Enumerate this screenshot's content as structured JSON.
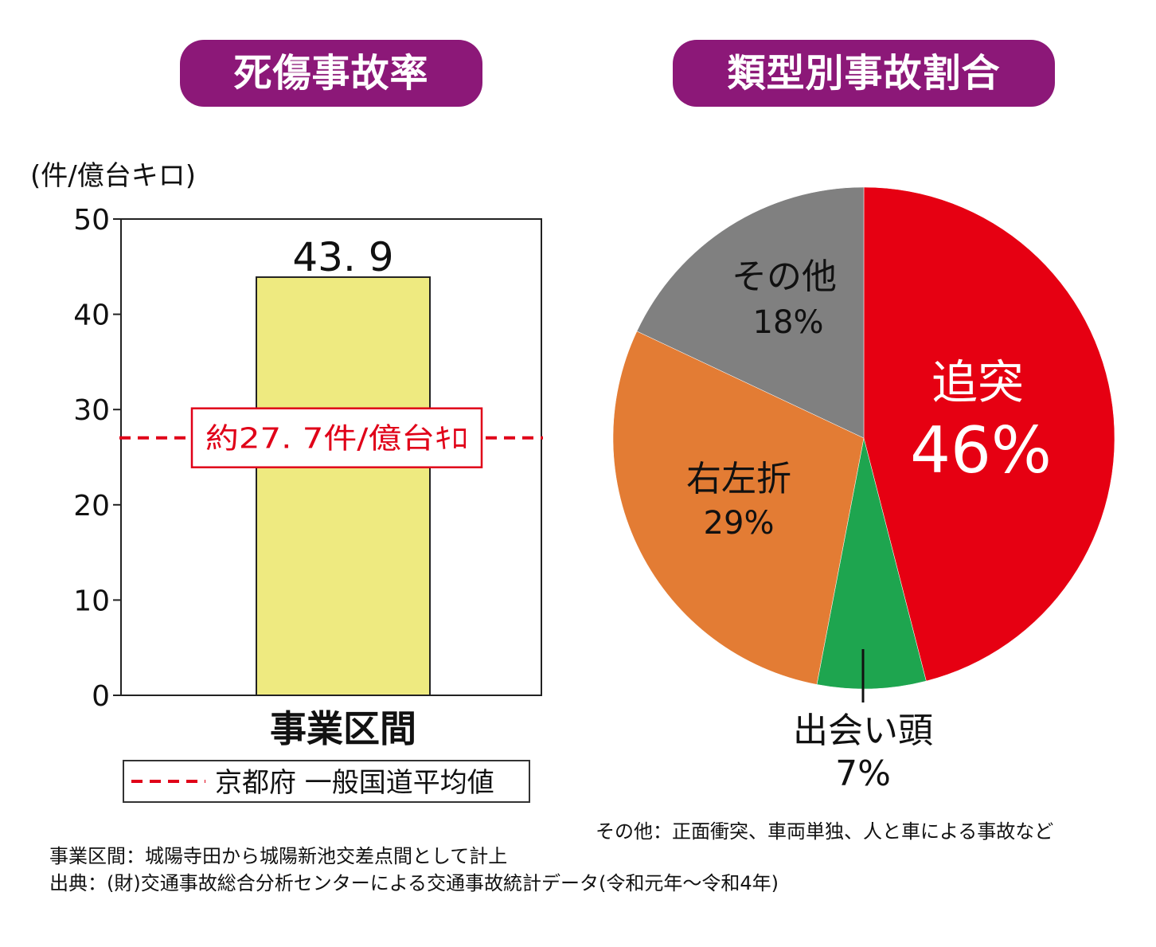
{
  "titles": {
    "left": "死傷事故率",
    "right": "類型別事故割合"
  },
  "colors": {
    "title_bg": "#8c1878",
    "bar_fill": "#eeea80",
    "reference_line": "#e00018",
    "rear_end": "#e60012",
    "head_on": "#1ea54f",
    "turning": "#e37c34",
    "other": "#808080"
  },
  "chart_data": [
    {
      "type": "bar",
      "title": "死傷事故率",
      "ylabel": "(件/億台キロ)",
      "categories": [
        "事業区間"
      ],
      "values": [
        43.9
      ],
      "value_labels": [
        "43. 9"
      ],
      "ylim": [
        0,
        50
      ],
      "yticks": [
        0,
        10,
        20,
        30,
        40,
        50
      ],
      "ytick_labels": [
        "0",
        "10",
        "20",
        "30",
        "40",
        "50"
      ],
      "reference_line": {
        "value": 27.7,
        "label": "約27. 7件/億台ｷﾛ",
        "style": "dashed",
        "legend": "京都府 一般国道平均値"
      }
    },
    {
      "type": "pie",
      "title": "類型別事故割合",
      "slices": [
        {
          "name": "追突",
          "value": 46,
          "label": "46%"
        },
        {
          "name": "出会い頭",
          "value": 7,
          "label": "7%"
        },
        {
          "name": "右左折",
          "value": 29,
          "label": "29%"
        },
        {
          "name": "その他",
          "value": 18,
          "label": "18%"
        }
      ],
      "note": "その他：正面衝突、車両単独、人と車による事故など"
    }
  ],
  "notes": {
    "section": "事業区間：城陽寺田から城陽新池交差点間として計上",
    "source": "出典：(財)交通事故総合分析センターによる交通事故統計データ(令和元年〜令和4年)"
  }
}
